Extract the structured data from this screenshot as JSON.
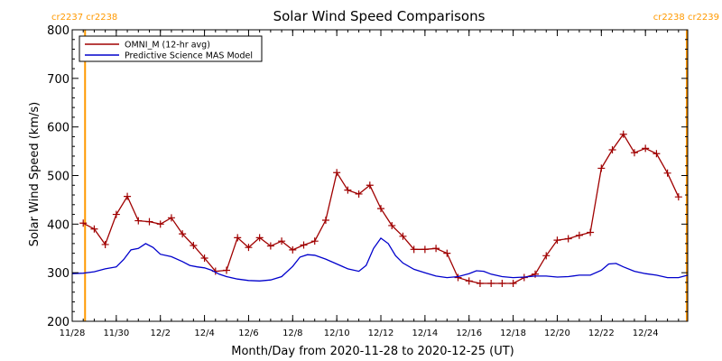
{
  "chart_data": {
    "type": "line",
    "title": "Solar Wind Speed Comparisons",
    "xlabel": "Month/Day from 2020-11-28 to 2020-12-25 (UT)",
    "ylabel": "Solar Wind Speed (km/s)",
    "xlim": [
      "2020-11-28T00:00",
      "2020-12-25T22:00"
    ],
    "ylim": [
      200,
      800
    ],
    "yticks": [
      200,
      300,
      400,
      500,
      600,
      700,
      800
    ],
    "xticks": [
      {
        "t": "2020-11-28T00:00",
        "label": "11/28"
      },
      {
        "t": "2020-11-30T00:00",
        "label": "11/30"
      },
      {
        "t": "2020-12-02T00:00",
        "label": "12/2"
      },
      {
        "t": "2020-12-04T00:00",
        "label": "12/4"
      },
      {
        "t": "2020-12-06T00:00",
        "label": "12/6"
      },
      {
        "t": "2020-12-08T00:00",
        "label": "12/8"
      },
      {
        "t": "2020-12-10T00:00",
        "label": "12/10"
      },
      {
        "t": "2020-12-12T00:00",
        "label": "12/12"
      },
      {
        "t": "2020-12-14T00:00",
        "label": "12/14"
      },
      {
        "t": "2020-12-16T00:00",
        "label": "12/16"
      },
      {
        "t": "2020-12-18T00:00",
        "label": "12/18"
      },
      {
        "t": "2020-12-20T00:00",
        "label": "12/20"
      },
      {
        "t": "2020-12-22T00:00",
        "label": "12/22"
      },
      {
        "t": "2020-12-24T00:00",
        "label": "12/24"
      }
    ],
    "legend_position": "top-left",
    "carrington_markers": [
      {
        "t": "2020-11-28T14:00",
        "labels": [
          "cr2237",
          "cr2238"
        ],
        "side": "left"
      },
      {
        "t": "2020-12-25T21:00",
        "labels": [
          "cr2238",
          "cr2239"
        ],
        "side": "right"
      }
    ],
    "marker_color": "#ff9900",
    "series": [
      {
        "name": "OMNI_M (12-hr avg)",
        "color": "#a00000",
        "markers": true,
        "points": [
          [
            "2020-11-28T12:00",
            402
          ],
          [
            "2020-11-29T00:00",
            390
          ],
          [
            "2020-11-29T12:00",
            358
          ],
          [
            "2020-11-30T00:00",
            420
          ],
          [
            "2020-11-30T12:00",
            457
          ],
          [
            "2020-12-01T00:00",
            407
          ],
          [
            "2020-12-01T12:00",
            405
          ],
          [
            "2020-12-02T00:00",
            400
          ],
          [
            "2020-12-02T12:00",
            413
          ],
          [
            "2020-12-03T00:00",
            380
          ],
          [
            "2020-12-03T12:00",
            356
          ],
          [
            "2020-12-04T00:00",
            330
          ],
          [
            "2020-12-04T12:00",
            303
          ],
          [
            "2020-12-05T00:00",
            305
          ],
          [
            "2020-12-05T12:00",
            372
          ],
          [
            "2020-12-06T00:00",
            352
          ],
          [
            "2020-12-06T12:00",
            372
          ],
          [
            "2020-12-07T00:00",
            355
          ],
          [
            "2020-12-07T12:00",
            365
          ],
          [
            "2020-12-08T00:00",
            347
          ],
          [
            "2020-12-08T12:00",
            357
          ],
          [
            "2020-12-09T00:00",
            365
          ],
          [
            "2020-12-09T12:00",
            408
          ],
          [
            "2020-12-10T00:00",
            506
          ],
          [
            "2020-12-10T12:00",
            470
          ],
          [
            "2020-12-11T00:00",
            462
          ],
          [
            "2020-12-11T12:00",
            480
          ],
          [
            "2020-12-12T00:00",
            432
          ],
          [
            "2020-12-12T12:00",
            397
          ],
          [
            "2020-12-13T00:00",
            375
          ],
          [
            "2020-12-13T12:00",
            348
          ],
          [
            "2020-12-14T00:00",
            348
          ],
          [
            "2020-12-14T12:00",
            350
          ],
          [
            "2020-12-15T00:00",
            340
          ],
          [
            "2020-12-15T12:00",
            290
          ],
          [
            "2020-12-16T00:00",
            283
          ],
          [
            "2020-12-16T12:00",
            278
          ],
          [
            "2020-12-17T00:00",
            278
          ],
          [
            "2020-12-17T12:00",
            278
          ],
          [
            "2020-12-18T00:00",
            278
          ],
          [
            "2020-12-18T12:00",
            290
          ],
          [
            "2020-12-19T00:00",
            297
          ],
          [
            "2020-12-19T12:00",
            335
          ],
          [
            "2020-12-20T00:00",
            367
          ],
          [
            "2020-12-20T12:00",
            370
          ],
          [
            "2020-12-21T00:00",
            377
          ],
          [
            "2020-12-21T12:00",
            383
          ],
          [
            "2020-12-22T00:00",
            515
          ],
          [
            "2020-12-22T12:00",
            553
          ],
          [
            "2020-12-23T00:00",
            585
          ],
          [
            "2020-12-23T12:00",
            547
          ],
          [
            "2020-12-24T00:00",
            556
          ],
          [
            "2020-12-24T12:00",
            545
          ],
          [
            "2020-12-25T00:00",
            505
          ],
          [
            "2020-12-25T12:00",
            456
          ]
        ]
      },
      {
        "name": "Predictive Science MAS Model",
        "color": "#0000cc",
        "markers": false,
        "points": [
          [
            "2020-11-28T00:00",
            298
          ],
          [
            "2020-11-28T12:00",
            299
          ],
          [
            "2020-11-29T00:00",
            302
          ],
          [
            "2020-11-29T12:00",
            308
          ],
          [
            "2020-11-30T00:00",
            312
          ],
          [
            "2020-11-30T08:00",
            327
          ],
          [
            "2020-11-30T16:00",
            347
          ],
          [
            "2020-12-01T00:00",
            350
          ],
          [
            "2020-12-01T08:00",
            360
          ],
          [
            "2020-12-01T16:00",
            352
          ],
          [
            "2020-12-02T00:00",
            338
          ],
          [
            "2020-12-02T12:00",
            333
          ],
          [
            "2020-12-03T00:00",
            323
          ],
          [
            "2020-12-03T08:00",
            315
          ],
          [
            "2020-12-03T16:00",
            312
          ],
          [
            "2020-12-04T00:00",
            310
          ],
          [
            "2020-12-04T08:00",
            305
          ],
          [
            "2020-12-04T16:00",
            297
          ],
          [
            "2020-12-05T00:00",
            292
          ],
          [
            "2020-12-05T12:00",
            287
          ],
          [
            "2020-12-06T00:00",
            284
          ],
          [
            "2020-12-06T12:00",
            283
          ],
          [
            "2020-12-07T00:00",
            285
          ],
          [
            "2020-12-07T12:00",
            292
          ],
          [
            "2020-12-08T00:00",
            313
          ],
          [
            "2020-12-08T08:00",
            332
          ],
          [
            "2020-12-08T16:00",
            337
          ],
          [
            "2020-12-09T00:00",
            336
          ],
          [
            "2020-12-09T12:00",
            328
          ],
          [
            "2020-12-10T00:00",
            318
          ],
          [
            "2020-12-10T12:00",
            308
          ],
          [
            "2020-12-11T00:00",
            303
          ],
          [
            "2020-12-11T08:00",
            315
          ],
          [
            "2020-12-11T16:00",
            350
          ],
          [
            "2020-12-12T00:00",
            371
          ],
          [
            "2020-12-12T08:00",
            360
          ],
          [
            "2020-12-12T16:00",
            335
          ],
          [
            "2020-12-13T00:00",
            320
          ],
          [
            "2020-12-13T12:00",
            307
          ],
          [
            "2020-12-14T00:00",
            300
          ],
          [
            "2020-12-14T12:00",
            293
          ],
          [
            "2020-12-15T00:00",
            290
          ],
          [
            "2020-12-15T12:00",
            292
          ],
          [
            "2020-12-16T00:00",
            298
          ],
          [
            "2020-12-16T08:00",
            304
          ],
          [
            "2020-12-16T16:00",
            303
          ],
          [
            "2020-12-17T00:00",
            297
          ],
          [
            "2020-12-17T12:00",
            292
          ],
          [
            "2020-12-18T00:00",
            290
          ],
          [
            "2020-12-18T12:00",
            291
          ],
          [
            "2020-12-19T00:00",
            293
          ],
          [
            "2020-12-19T12:00",
            293
          ],
          [
            "2020-12-20T00:00",
            291
          ],
          [
            "2020-12-20T12:00",
            292
          ],
          [
            "2020-12-21T00:00",
            295
          ],
          [
            "2020-12-21T12:00",
            295
          ],
          [
            "2020-12-22T00:00",
            305
          ],
          [
            "2020-12-22T08:00",
            318
          ],
          [
            "2020-12-22T16:00",
            319
          ],
          [
            "2020-12-23T00:00",
            312
          ],
          [
            "2020-12-23T12:00",
            303
          ],
          [
            "2020-12-24T00:00",
            298
          ],
          [
            "2020-12-24T12:00",
            295
          ],
          [
            "2020-12-25T00:00",
            290
          ],
          [
            "2020-12-25T12:00",
            290
          ],
          [
            "2020-12-25T22:00",
            295
          ]
        ]
      }
    ]
  }
}
